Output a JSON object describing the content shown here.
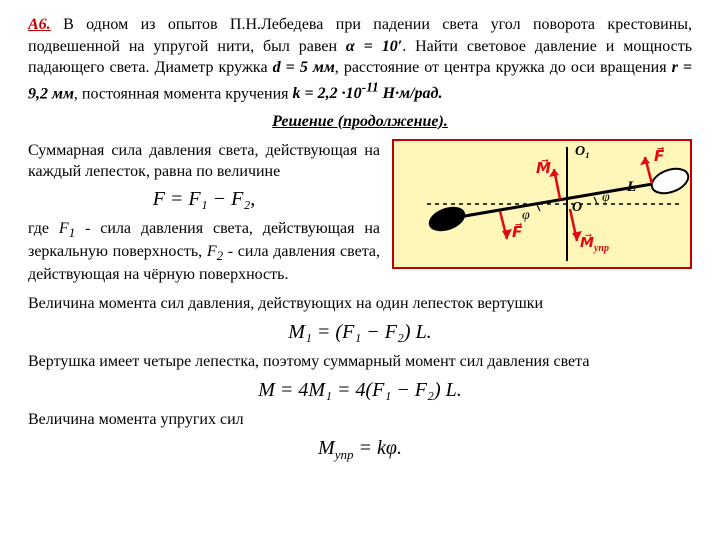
{
  "problem": {
    "label": "А6.",
    "text_html": "В одном из опытов П.Н.Лебедева при падении света угол поворота крестовины, подвешенной на упругой нити, был равен <b class='ital'>α = 10′</b>. Найти световое давление и мощность падающего света. Диаметр кружка <b class='ital'>d = 5 мм</b>, расстояние от центра кружка до оси вращения <b class='ital'>r = 9,2 мм</b>, постоянная момента кручения <b class='ital'>k = 2,2 ·10<sup>-11</sup> Н·м/рад.</b>"
  },
  "solution_heading": "Решение (продолжение).",
  "para1": "Суммарная сила давления света, действующая на каждый лепесток, равна по величине",
  "eq1": "F = F₁ − F₂,",
  "para2_html": "где <span class='ital'>F<span class='sub'>1</span></span> - сила давления света, действующая на зеркальную поверхность, <span class='ital'>F<span class='sub'>2</span></span> - сила давления света, действующая на чёрную поверхность.",
  "para3": "Величина момента сил давления, действующих на один лепесток вертушки",
  "eq2": "M₁ = (F₁ − F₂) L.",
  "para4": "Вертушка имеет четыре лепестка, поэтому суммарный момент сил давления света",
  "eq3": "M = 4M₁ = 4(F₁ − F₂) L.",
  "para5": "Величина момента упругих сил",
  "eq4": "Mупр = kφ.",
  "figure": {
    "bg": "#fff6ba",
    "frame": "#c00000",
    "axis_color": "#000000",
    "arrow_color": "#e30613",
    "O": "O",
    "O1": "O₁",
    "M": "M",
    "Mupr": "Mупр",
    "F": "F",
    "L": "L",
    "phi": "φ"
  }
}
